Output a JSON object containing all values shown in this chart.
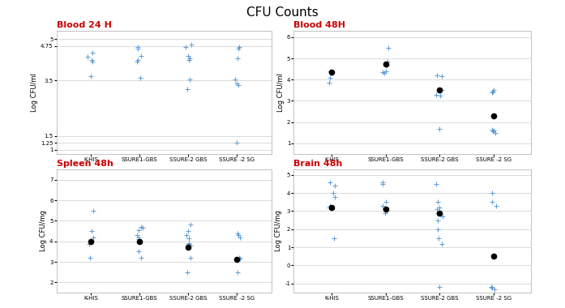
{
  "title": "CFU Counts",
  "title_bg": "#D4A535",
  "title_color": "black",
  "subtitle_color": "#CC0000",
  "categories": [
    "K-HIS",
    "SSURE1-GBS",
    "SSURE-2 GBS",
    "SSURE -2 SG"
  ],
  "subplots": [
    {
      "title": "Blood 24 H",
      "ylabel": "Log CFU/ml",
      "yticks": [
        1,
        1.25,
        1.5,
        3.5,
        4.75,
        5
      ],
      "ylim": [
        0.85,
        5.3
      ],
      "ytick_labels": [
        "1",
        "1.25",
        "1.5",
        "3.5",
        "4.75",
        "5"
      ],
      "scatter": [
        [
          4.5,
          4.35,
          4.25,
          4.2,
          3.65
        ],
        [
          4.7,
          4.65,
          4.4,
          4.25,
          4.2,
          3.6
        ],
        [
          4.8,
          4.7,
          4.4,
          4.3,
          4.25,
          3.55,
          3.2
        ],
        [
          4.7,
          4.65,
          4.3,
          3.55,
          3.4,
          3.35,
          1.25
        ]
      ],
      "median": [
        null,
        null,
        null,
        null
      ],
      "has_median": false
    },
    {
      "title": "Blood 48H",
      "ylabel": "Log CFU/ml",
      "yticks": [
        1,
        2,
        3,
        4,
        5,
        6
      ],
      "ylim": [
        0.5,
        6.3
      ],
      "ytick_labels": [
        "1",
        "2",
        "3",
        "4",
        "5",
        "6"
      ],
      "scatter": [
        [
          4.4,
          4.3,
          4.1,
          3.85
        ],
        [
          4.85,
          4.7,
          4.65,
          4.4,
          4.35,
          4.3,
          5.5
        ],
        [
          4.2,
          4.15,
          3.5,
          3.3,
          3.25,
          1.7
        ],
        [
          3.5,
          3.45,
          3.4,
          1.65,
          1.6,
          1.55,
          1.5
        ]
      ],
      "median": [
        4.35,
        4.75,
        3.5,
        2.3
      ],
      "has_median": true
    },
    {
      "title": "Spleen 48h",
      "ylabel": "Log CFU/mg",
      "yticks": [
        2,
        3,
        4,
        5,
        6,
        7
      ],
      "ylim": [
        1.5,
        7.5
      ],
      "ytick_labels": [
        "2",
        "3",
        "4",
        "5",
        "6",
        "7"
      ],
      "scatter": [
        [
          5.5,
          4.5,
          4.2,
          3.85,
          3.2
        ],
        [
          4.7,
          4.65,
          4.55,
          4.3,
          4.2,
          4.1,
          3.5,
          3.2
        ],
        [
          4.8,
          4.5,
          4.3,
          4.15,
          3.9,
          3.85,
          3.8,
          3.2,
          2.5
        ],
        [
          4.4,
          4.3,
          4.2,
          3.2,
          3.15,
          2.5
        ]
      ],
      "median": [
        4.0,
        4.0,
        3.7,
        3.1
      ],
      "has_median": true
    },
    {
      "title": "Brain 48h",
      "ylabel": "Log CFU/mg",
      "yticks": [
        -1,
        0,
        1,
        2,
        3,
        4,
        5
      ],
      "ylim": [
        -1.5,
        5.3
      ],
      "ytick_labels": [
        "-1",
        "0",
        "1",
        "2",
        "3",
        "4",
        "5"
      ],
      "scatter": [
        [
          4.6,
          4.4,
          4.0,
          3.8,
          3.3,
          3.2,
          1.5
        ],
        [
          4.6,
          4.5,
          3.5,
          3.3,
          3.1,
          3.0,
          2.9
        ],
        [
          4.5,
          3.5,
          3.2,
          3.1,
          2.9,
          2.7,
          2.5,
          2.0,
          1.5,
          1.2,
          -1.2
        ],
        [
          4.0,
          3.5,
          3.3,
          -1.2,
          -1.25,
          -1.3
        ]
      ],
      "median": [
        3.2,
        3.1,
        2.9,
        0.5
      ],
      "has_median": true
    }
  ]
}
